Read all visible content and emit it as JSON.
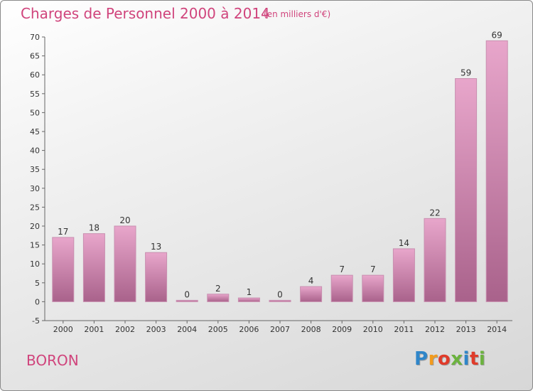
{
  "header": {
    "title": "Charges de Personnel 2000 à 2014",
    "unit": "(en milliers d'€)"
  },
  "commune": "BORON",
  "brand": {
    "letters": [
      "P",
      "r",
      "o",
      "x",
      "i",
      "t",
      "i"
    ],
    "colors": [
      "#2f86c9",
      "#f29b1d",
      "#e03b2a",
      "#6cb33f",
      "#2f86c9",
      "#e03b2a",
      "#6cb33f"
    ]
  },
  "colors": {
    "bar_top": "#e8a6cb",
    "bar_bottom": "#a9628b",
    "accent": "#d0447c"
  },
  "chart_data": {
    "type": "bar",
    "title": "Charges de Personnel 2000 à 2014",
    "xlabel": "",
    "ylabel": "",
    "ylim": [
      -5,
      70
    ],
    "yticks": [
      -5,
      0,
      5,
      10,
      15,
      20,
      25,
      30,
      35,
      40,
      45,
      50,
      55,
      60,
      65,
      70
    ],
    "grid": false,
    "categories": [
      "2000",
      "2001",
      "2002",
      "2003",
      "2004",
      "2005",
      "2006",
      "2007",
      "2008",
      "2009",
      "2010",
      "2011",
      "2012",
      "2013",
      "2014"
    ],
    "values": [
      17,
      18,
      20,
      13,
      0,
      2,
      1,
      0,
      4,
      7,
      7,
      14,
      22,
      59,
      69
    ],
    "data_labels": [
      "17",
      "18",
      "20",
      "13",
      "0",
      "2",
      "1",
      "0",
      "4",
      "7",
      "7",
      "14",
      "22",
      "59",
      "69"
    ]
  }
}
